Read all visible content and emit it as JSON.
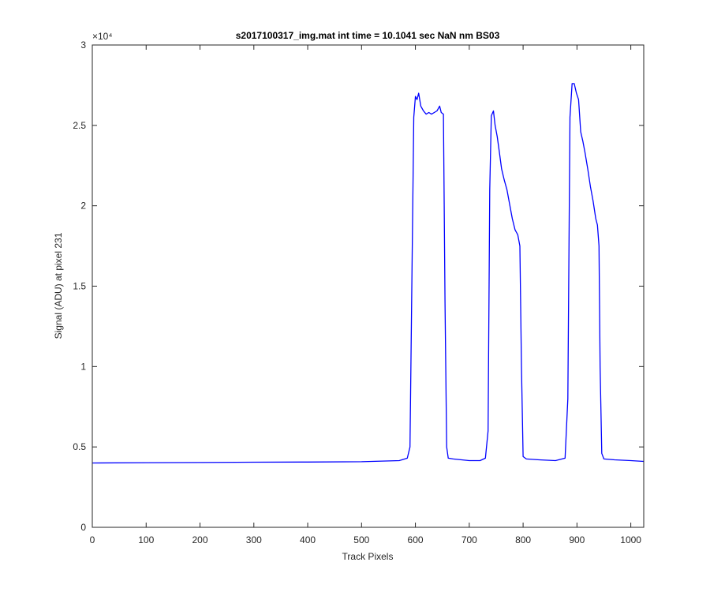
{
  "chart_data": {
    "type": "line",
    "title": "s2017100317_img.mat int time = 10.1041 sec  NaN nm BS03",
    "xlabel": "Track Pixels",
    "ylabel": "Signal (ADU) at pixel 231",
    "xlim": [
      0,
      1024
    ],
    "ylim": [
      0,
      30000
    ],
    "x_ticks": [
      0,
      100,
      200,
      300,
      400,
      500,
      600,
      700,
      800,
      900,
      1000
    ],
    "x_tick_labels": [
      "0",
      "100",
      "200",
      "300",
      "400",
      "500",
      "600",
      "700",
      "800",
      "900",
      "1000"
    ],
    "y_ticks": [
      0,
      5000,
      10000,
      15000,
      20000,
      25000,
      30000
    ],
    "y_tick_labels": [
      "0",
      "0.5",
      "1",
      "1.5",
      "2",
      "2.5",
      "3"
    ],
    "y_exponent_label": "×10⁴",
    "grid": false,
    "legend": "none",
    "series": [
      {
        "color": "#0000ff",
        "x": [
          0,
          100,
          200,
          300,
          400,
          500,
          570,
          585,
          590,
          593,
          597,
          600,
          603,
          606,
          610,
          615,
          620,
          625,
          630,
          635,
          640,
          645,
          648,
          652,
          655,
          658,
          661,
          670,
          700,
          720,
          730,
          735,
          738,
          741,
          745,
          748,
          752,
          756,
          760,
          765,
          770,
          775,
          780,
          785,
          790,
          794,
          797,
          800,
          806,
          830,
          860,
          878,
          883,
          887,
          891,
          895,
          899,
          903,
          907,
          911,
          915,
          920,
          925,
          930,
          935,
          938,
          941,
          943,
          946,
          950,
          970,
          1000,
          1024
        ],
        "y": [
          4000,
          4020,
          4030,
          4050,
          4060,
          4080,
          4150,
          4300,
          5000,
          14000,
          25500,
          26800,
          26600,
          27000,
          26200,
          25900,
          25700,
          25800,
          25700,
          25800,
          25900,
          26200,
          25800,
          25700,
          14000,
          5000,
          4300,
          4250,
          4150,
          4150,
          4300,
          6000,
          21000,
          25600,
          25900,
          25000,
          24300,
          23300,
          22300,
          21600,
          21000,
          20100,
          19200,
          18500,
          18200,
          17500,
          10000,
          4400,
          4250,
          4200,
          4150,
          4300,
          8000,
          25500,
          27600,
          27600,
          27000,
          26600,
          24600,
          24000,
          23300,
          22300,
          21200,
          20300,
          19200,
          18800,
          17500,
          10000,
          4600,
          4250,
          4200,
          4150,
          4100
        ]
      }
    ]
  }
}
